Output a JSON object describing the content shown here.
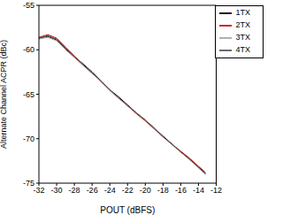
{
  "chart_data": {
    "type": "line",
    "x_label": "POUT (dBFS)",
    "y_label": "Alternate Channel ACPR (dBc)",
    "x": [
      -32,
      -31,
      -30,
      -29,
      -28,
      -27,
      -26,
      -25,
      -24,
      -23,
      -22,
      -21,
      -20,
      -19,
      -18,
      -17,
      -16,
      -15,
      -14,
      -13.2
    ],
    "series": [
      {
        "name": "1TX",
        "color": "#000000",
        "values": [
          -58.7,
          -58.5,
          -58.9,
          -59.9,
          -60.8,
          -61.6,
          -62.5,
          -63.5,
          -64.5,
          -65.3,
          -66.2,
          -67.1,
          -67.9,
          -68.8,
          -69.7,
          -70.6,
          -71.5,
          -72.3,
          -73.2,
          -73.9
        ]
      },
      {
        "name": "2TX",
        "color": "#d00000",
        "values": [
          -58.6,
          -58.3,
          -58.7,
          -59.7,
          -60.7,
          -61.7,
          -62.6,
          -63.6,
          -64.6,
          -65.4,
          -66.3,
          -67.2,
          -68.0,
          -68.9,
          -69.8,
          -70.6,
          -71.4,
          -72.2,
          -73.1,
          -73.8
        ]
      },
      {
        "name": "3TX",
        "color": "#a6a6a6",
        "values": [
          -58.8,
          -58.6,
          -59.0,
          -60.0,
          -60.9,
          -61.8,
          -62.7,
          -63.5,
          -64.6,
          -65.5,
          -66.3,
          -67.1,
          -67.9,
          -68.8,
          -69.8,
          -70.7,
          -71.5,
          -72.4,
          -73.3,
          -74.0
        ]
      },
      {
        "name": "4TX",
        "color": "#555555",
        "values": [
          -58.7,
          -58.4,
          -58.8,
          -59.8,
          -60.8,
          -61.7,
          -62.6,
          -63.5,
          -64.5,
          -65.4,
          -66.3,
          -67.1,
          -67.9,
          -68.8,
          -69.8,
          -70.6,
          -71.5,
          -72.3,
          -73.2,
          -74.0
        ]
      }
    ],
    "xlim": [
      -32,
      -12
    ],
    "xticks": [
      -32,
      -30,
      -28,
      -26,
      -24,
      -22,
      -20,
      -18,
      -16,
      -14,
      -12
    ],
    "ylim": [
      -75,
      -55
    ],
    "yticks": [
      -75,
      -70,
      -65,
      -60,
      -55
    ],
    "grid": false,
    "legend": "upper right"
  }
}
